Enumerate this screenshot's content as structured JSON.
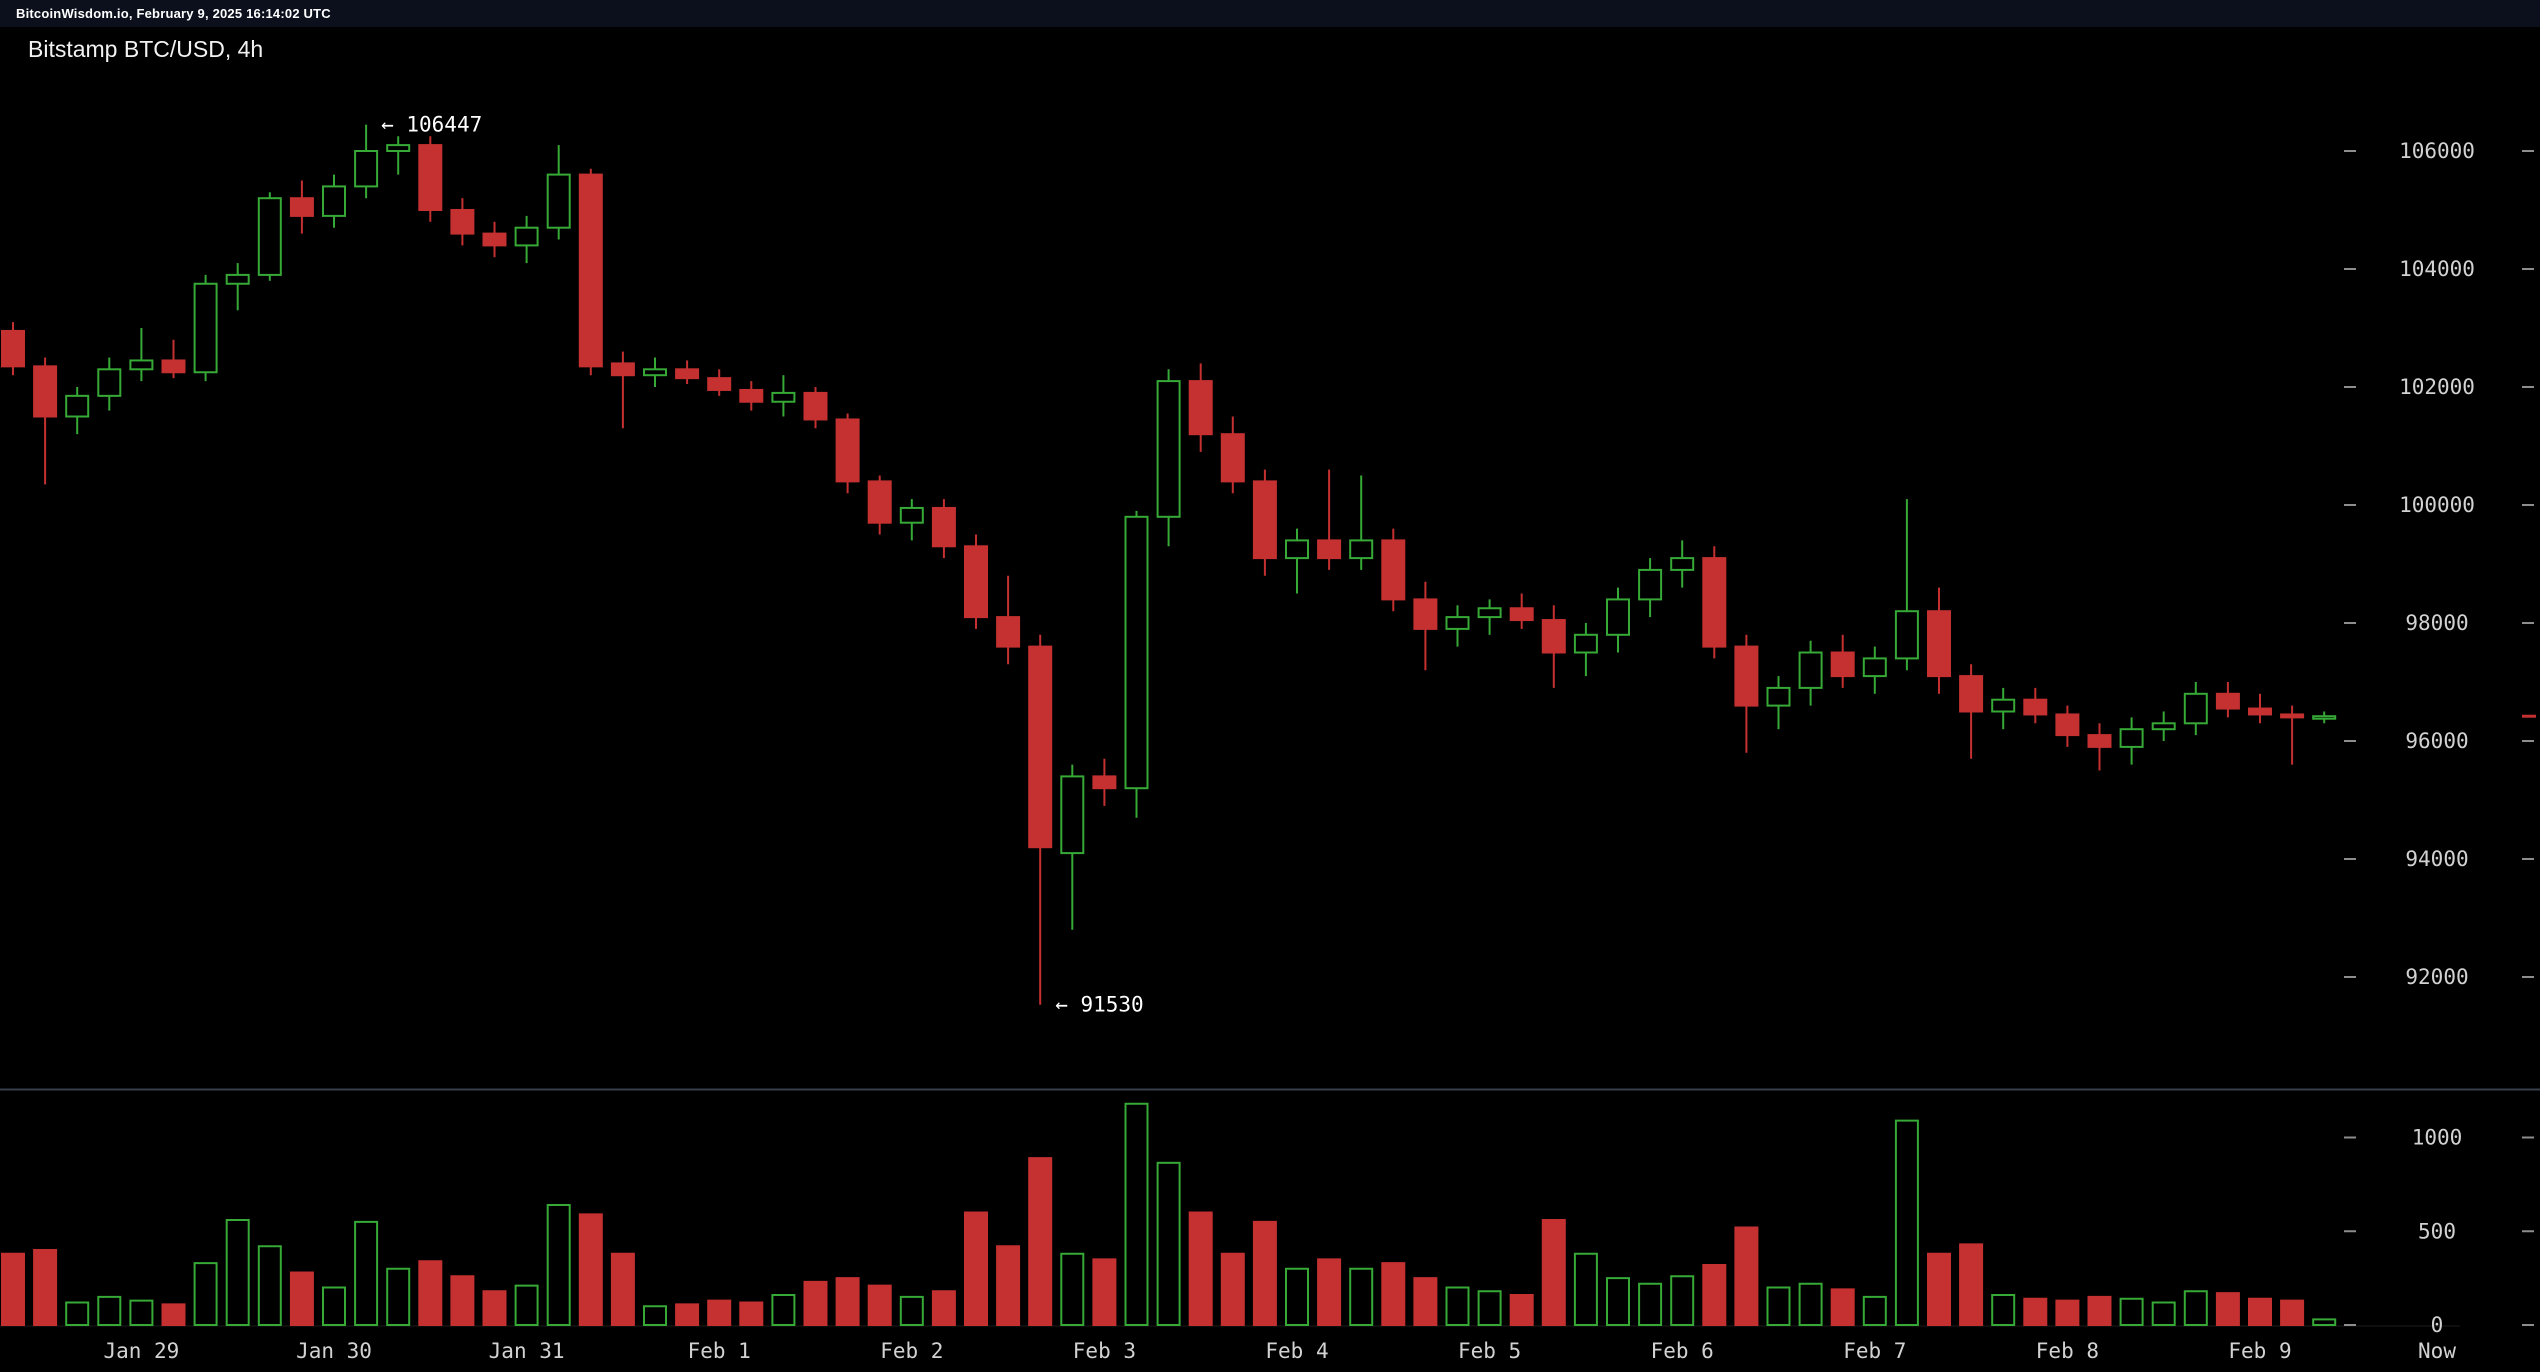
{
  "header": {
    "site_label": "BitcoinWisdom.io, February 9, 2025 16:14:02 UTC"
  },
  "chart": {
    "title": "Bitstamp BTC/USD, 4h"
  },
  "colors": {
    "up": "#36a936",
    "down": "#c53131",
    "bg": "#000000",
    "axis_text": "#d2d2d2",
    "tick": "#8d8d8d",
    "annotation": "#ffffff",
    "divider": "#39404c",
    "topbar_bg": "#0b101c"
  },
  "chart_data": {
    "type": "candlestick+volume",
    "exchange_pair": "Bitstamp BTC/USD",
    "interval": "4h",
    "title": "Bitstamp BTC/USD, 4h",
    "y_axis": {
      "ticks": [
        106000,
        104000,
        102000,
        100000,
        98000,
        96000,
        94000,
        92000
      ],
      "min": 91000,
      "max": 107000
    },
    "volume_axis": {
      "ticks": [
        1000,
        500,
        0
      ],
      "max": 1300
    },
    "x_labels": [
      {
        "label": "Jan 29",
        "index": 4
      },
      {
        "label": "Jan 30",
        "index": 10
      },
      {
        "label": "Jan 31",
        "index": 16
      },
      {
        "label": "Feb 1",
        "index": 22
      },
      {
        "label": "Feb 2",
        "index": 28
      },
      {
        "label": "Feb 3",
        "index": 34
      },
      {
        "label": "Feb 4",
        "index": 40
      },
      {
        "label": "Feb 5",
        "index": 46
      },
      {
        "label": "Feb 6",
        "index": 52
      },
      {
        "label": "Feb 7",
        "index": 58
      },
      {
        "label": "Feb 8",
        "index": 64
      },
      {
        "label": "Feb 9",
        "index": 70
      }
    ],
    "now_label": "Now",
    "annotations": [
      {
        "text": "← 106447",
        "type": "high",
        "index": 11,
        "price": 106447
      },
      {
        "text": "← 91530",
        "type": "low",
        "index": 32,
        "price": 91530
      }
    ],
    "candle_format": [
      "open",
      "high",
      "low",
      "close",
      "volume"
    ],
    "candles": [
      [
        102950,
        103100,
        102200,
        102350,
        380
      ],
      [
        102350,
        102500,
        100350,
        101500,
        400
      ],
      [
        101500,
        102000,
        101200,
        101850,
        120
      ],
      [
        101850,
        102500,
        101600,
        102300,
        150
      ],
      [
        102300,
        103000,
        102100,
        102450,
        130
      ],
      [
        102450,
        102800,
        102150,
        102250,
        110
      ],
      [
        102250,
        103900,
        102100,
        103750,
        330
      ],
      [
        103750,
        104100,
        103300,
        103900,
        560
      ],
      [
        103900,
        105300,
        103800,
        105200,
        420
      ],
      [
        105200,
        105500,
        104600,
        104900,
        280
      ],
      [
        104900,
        105600,
        104700,
        105400,
        200
      ],
      [
        105400,
        106447,
        105200,
        106000,
        550
      ],
      [
        106000,
        106250,
        105600,
        106100,
        300
      ],
      [
        106100,
        106250,
        104800,
        105000,
        340
      ],
      [
        105000,
        105200,
        104400,
        104600,
        260
      ],
      [
        104600,
        104800,
        104200,
        104400,
        180
      ],
      [
        104400,
        104900,
        104100,
        104700,
        210
      ],
      [
        104700,
        106100,
        104500,
        105600,
        640
      ],
      [
        105600,
        105700,
        102200,
        102350,
        590
      ],
      [
        102400,
        102600,
        101300,
        102200,
        380
      ],
      [
        102200,
        102500,
        102000,
        102300,
        100
      ],
      [
        102300,
        102450,
        102050,
        102150,
        110
      ],
      [
        102150,
        102300,
        101850,
        101950,
        130
      ],
      [
        101950,
        102100,
        101600,
        101750,
        120
      ],
      [
        101750,
        102200,
        101500,
        101900,
        160
      ],
      [
        101900,
        102000,
        101300,
        101450,
        230
      ],
      [
        101450,
        101550,
        100200,
        100400,
        250
      ],
      [
        100400,
        100500,
        99500,
        99700,
        210
      ],
      [
        99700,
        100100,
        99400,
        99950,
        150
      ],
      [
        99950,
        100100,
        99100,
        99300,
        180
      ],
      [
        99300,
        99500,
        97900,
        98100,
        600
      ],
      [
        98100,
        98800,
        97300,
        97600,
        420
      ],
      [
        97600,
        97800,
        91530,
        94200,
        890
      ],
      [
        94100,
        95600,
        92800,
        95400,
        380
      ],
      [
        95400,
        95700,
        94900,
        95200,
        350
      ],
      [
        95200,
        99900,
        94700,
        99800,
        1180
      ],
      [
        99800,
        102300,
        99300,
        102100,
        865
      ],
      [
        102100,
        102400,
        100900,
        101200,
        600
      ],
      [
        101200,
        101500,
        100200,
        100400,
        380
      ],
      [
        100400,
        100600,
        98800,
        99100,
        550
      ],
      [
        99100,
        99600,
        98500,
        99400,
        300
      ],
      [
        99400,
        100600,
        98900,
        99100,
        350
      ],
      [
        99100,
        100500,
        98900,
        99400,
        300
      ],
      [
        99400,
        99600,
        98200,
        98400,
        330
      ],
      [
        98400,
        98700,
        97200,
        97900,
        250
      ],
      [
        97900,
        98300,
        97600,
        98100,
        200
      ],
      [
        98100,
        98400,
        97800,
        98250,
        180
      ],
      [
        98250,
        98500,
        97900,
        98050,
        160
      ],
      [
        98050,
        98300,
        96900,
        97500,
        560
      ],
      [
        97500,
        98000,
        97100,
        97800,
        380
      ],
      [
        97800,
        98600,
        97500,
        98400,
        250
      ],
      [
        98400,
        99100,
        98100,
        98900,
        220
      ],
      [
        98900,
        99400,
        98600,
        99100,
        260
      ],
      [
        99100,
        99300,
        97400,
        97600,
        320
      ],
      [
        97600,
        97800,
        95800,
        96600,
        520
      ],
      [
        96600,
        97100,
        96200,
        96900,
        200
      ],
      [
        96900,
        97700,
        96600,
        97500,
        220
      ],
      [
        97500,
        97800,
        96900,
        97100,
        190
      ],
      [
        97100,
        97600,
        96800,
        97400,
        150
      ],
      [
        97400,
        100100,
        97200,
        98200,
        1090
      ],
      [
        98200,
        98600,
        96800,
        97100,
        380
      ],
      [
        97100,
        97300,
        95700,
        96500,
        430
      ],
      [
        96500,
        96900,
        96200,
        96700,
        160
      ],
      [
        96700,
        96900,
        96300,
        96450,
        140
      ],
      [
        96450,
        96600,
        95900,
        96100,
        130
      ],
      [
        96100,
        96300,
        95500,
        95900,
        150
      ],
      [
        95900,
        96400,
        95600,
        96200,
        140
      ],
      [
        96200,
        96500,
        96000,
        96300,
        120
      ],
      [
        96300,
        97000,
        96100,
        96800,
        180
      ],
      [
        96800,
        97000,
        96400,
        96550,
        170
      ],
      [
        96550,
        96800,
        96300,
        96450,
        140
      ],
      [
        96450,
        96600,
        95600,
        96400,
        130
      ],
      [
        96400,
        96500,
        96300,
        96420,
        30
      ]
    ]
  }
}
